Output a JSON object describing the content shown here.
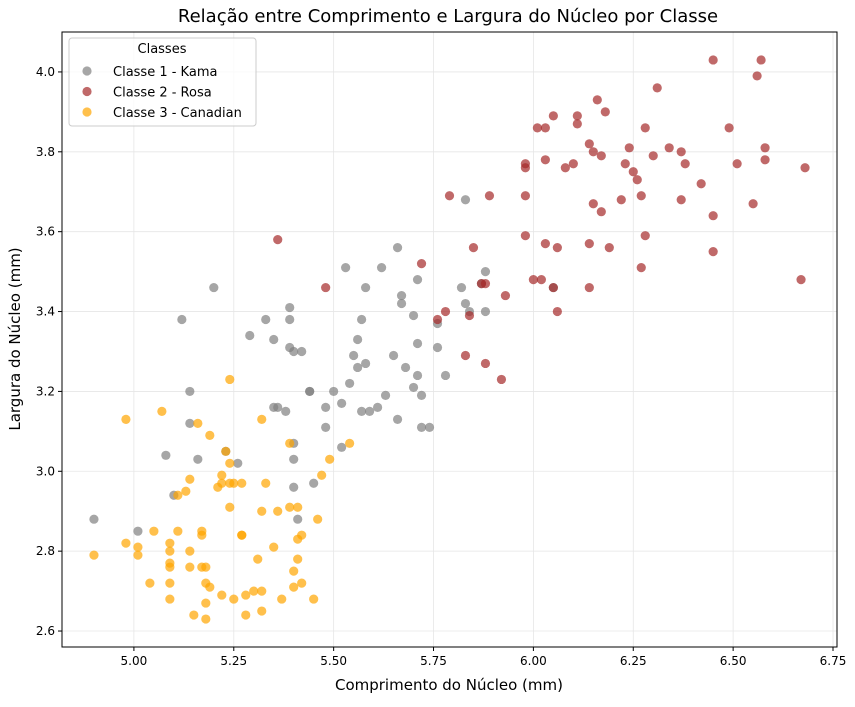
{
  "chart_data": {
    "type": "scatter",
    "title": "Relação entre Comprimento e Largura do Núcleo por Classe",
    "xlabel": "Comprimento do Núcleo (mm)",
    "ylabel": "Largura do Núcleo (mm)",
    "xlim": [
      4.82,
      6.76
    ],
    "ylim": [
      2.56,
      4.1
    ],
    "xticks": [
      "5.00",
      "5.25",
      "5.50",
      "5.75",
      "6.00",
      "6.25",
      "6.50",
      "6.75"
    ],
    "yticks": [
      "2.6",
      "2.8",
      "3.0",
      "3.2",
      "3.4",
      "3.6",
      "3.8",
      "4.0"
    ],
    "grid": true,
    "legend": {
      "title": "Classes",
      "placement": "top-left"
    },
    "series": [
      {
        "name": "Classe 1 - Kama",
        "color": "#808080",
        "points": [
          [
            4.9,
            2.88
          ],
          [
            5.01,
            2.85
          ],
          [
            5.08,
            3.04
          ],
          [
            5.1,
            2.94
          ],
          [
            5.12,
            3.38
          ],
          [
            5.14,
            3.2
          ],
          [
            5.14,
            3.12
          ],
          [
            5.16,
            3.03
          ],
          [
            5.2,
            3.46
          ],
          [
            5.23,
            3.05
          ],
          [
            5.26,
            3.02
          ],
          [
            5.29,
            3.34
          ],
          [
            5.33,
            3.38
          ],
          [
            5.35,
            3.33
          ],
          [
            5.35,
            3.16
          ],
          [
            5.36,
            3.16
          ],
          [
            5.38,
            3.15
          ],
          [
            5.39,
            3.41
          ],
          [
            5.39,
            3.38
          ],
          [
            5.39,
            3.31
          ],
          [
            5.4,
            3.3
          ],
          [
            5.4,
            3.07
          ],
          [
            5.4,
            3.03
          ],
          [
            5.4,
            2.96
          ],
          [
            5.41,
            2.88
          ],
          [
            5.42,
            3.3
          ],
          [
            5.44,
            3.2
          ],
          [
            5.44,
            3.2
          ],
          [
            5.45,
            2.97
          ],
          [
            5.48,
            3.16
          ],
          [
            5.48,
            3.11
          ],
          [
            5.5,
            3.2
          ],
          [
            5.52,
            3.17
          ],
          [
            5.52,
            3.06
          ],
          [
            5.53,
            3.51
          ],
          [
            5.54,
            3.22
          ],
          [
            5.55,
            3.29
          ],
          [
            5.56,
            3.33
          ],
          [
            5.56,
            3.26
          ],
          [
            5.57,
            3.38
          ],
          [
            5.57,
            3.15
          ],
          [
            5.58,
            3.46
          ],
          [
            5.58,
            3.27
          ],
          [
            5.59,
            3.15
          ],
          [
            5.61,
            3.16
          ],
          [
            5.62,
            3.51
          ],
          [
            5.63,
            3.19
          ],
          [
            5.65,
            3.29
          ],
          [
            5.66,
            3.56
          ],
          [
            5.66,
            3.13
          ],
          [
            5.67,
            3.42
          ],
          [
            5.67,
            3.44
          ],
          [
            5.68,
            3.26
          ],
          [
            5.7,
            3.39
          ],
          [
            5.7,
            3.21
          ],
          [
            5.71,
            3.48
          ],
          [
            5.71,
            3.32
          ],
          [
            5.71,
            3.24
          ],
          [
            5.72,
            3.19
          ],
          [
            5.72,
            3.11
          ],
          [
            5.74,
            3.11
          ],
          [
            5.76,
            3.37
          ],
          [
            5.76,
            3.31
          ],
          [
            5.78,
            3.24
          ],
          [
            5.82,
            3.46
          ],
          [
            5.83,
            3.68
          ],
          [
            5.83,
            3.42
          ],
          [
            5.84,
            3.4
          ],
          [
            5.87,
            3.47
          ],
          [
            5.88,
            3.5
          ],
          [
            5.88,
            3.4
          ],
          [
            6.05,
            3.46
          ]
        ]
      },
      {
        "name": "Classe 2 - Rosa",
        "color": "#A52A2A",
        "points": [
          [
            5.36,
            3.58
          ],
          [
            5.48,
            3.46
          ],
          [
            5.72,
            3.52
          ],
          [
            5.76,
            3.38
          ],
          [
            5.78,
            3.4
          ],
          [
            5.79,
            3.69
          ],
          [
            5.83,
            3.29
          ],
          [
            5.84,
            3.39
          ],
          [
            5.85,
            3.56
          ],
          [
            5.87,
            3.47
          ],
          [
            5.88,
            3.47
          ],
          [
            5.88,
            3.27
          ],
          [
            5.89,
            3.69
          ],
          [
            5.92,
            3.23
          ],
          [
            5.93,
            3.44
          ],
          [
            5.98,
            3.77
          ],
          [
            5.98,
            3.76
          ],
          [
            5.98,
            3.69
          ],
          [
            5.98,
            3.59
          ],
          [
            6.0,
            3.48
          ],
          [
            6.01,
            3.86
          ],
          [
            6.02,
            3.48
          ],
          [
            6.03,
            3.86
          ],
          [
            6.03,
            3.78
          ],
          [
            6.03,
            3.57
          ],
          [
            6.05,
            3.89
          ],
          [
            6.05,
            3.46
          ],
          [
            6.06,
            3.56
          ],
          [
            6.06,
            3.4
          ],
          [
            6.08,
            3.76
          ],
          [
            6.1,
            3.77
          ],
          [
            6.11,
            3.89
          ],
          [
            6.11,
            3.87
          ],
          [
            6.14,
            3.82
          ],
          [
            6.14,
            3.57
          ],
          [
            6.14,
            3.46
          ],
          [
            6.15,
            3.8
          ],
          [
            6.15,
            3.67
          ],
          [
            6.16,
            3.93
          ],
          [
            6.17,
            3.79
          ],
          [
            6.17,
            3.65
          ],
          [
            6.18,
            3.9
          ],
          [
            6.19,
            3.56
          ],
          [
            6.22,
            3.68
          ],
          [
            6.23,
            3.77
          ],
          [
            6.24,
            3.81
          ],
          [
            6.25,
            3.75
          ],
          [
            6.26,
            3.73
          ],
          [
            6.27,
            3.69
          ],
          [
            6.27,
            3.51
          ],
          [
            6.28,
            3.86
          ],
          [
            6.28,
            3.59
          ],
          [
            6.3,
            3.79
          ],
          [
            6.31,
            3.96
          ],
          [
            6.34,
            3.81
          ],
          [
            6.37,
            3.8
          ],
          [
            6.37,
            3.68
          ],
          [
            6.38,
            3.77
          ],
          [
            6.42,
            3.72
          ],
          [
            6.45,
            4.03
          ],
          [
            6.45,
            3.64
          ],
          [
            6.45,
            3.55
          ],
          [
            6.49,
            3.86
          ],
          [
            6.51,
            3.77
          ],
          [
            6.55,
            3.67
          ],
          [
            6.56,
            3.99
          ],
          [
            6.57,
            4.03
          ],
          [
            6.58,
            3.81
          ],
          [
            6.58,
            3.78
          ],
          [
            6.67,
            3.48
          ],
          [
            6.68,
            3.76
          ]
        ]
      },
      {
        "name": "Classe 3 - Canadian",
        "color": "#FFA500",
        "points": [
          [
            4.9,
            2.79
          ],
          [
            4.98,
            3.13
          ],
          [
            4.98,
            2.82
          ],
          [
            5.01,
            2.81
          ],
          [
            5.01,
            2.79
          ],
          [
            5.04,
            2.72
          ],
          [
            5.05,
            2.85
          ],
          [
            5.07,
            3.15
          ],
          [
            5.09,
            2.82
          ],
          [
            5.09,
            2.8
          ],
          [
            5.09,
            2.77
          ],
          [
            5.09,
            2.76
          ],
          [
            5.09,
            2.72
          ],
          [
            5.09,
            2.68
          ],
          [
            5.11,
            2.94
          ],
          [
            5.11,
            2.85
          ],
          [
            5.13,
            2.95
          ],
          [
            5.14,
            2.98
          ],
          [
            5.14,
            2.8
          ],
          [
            5.14,
            2.76
          ],
          [
            5.15,
            2.64
          ],
          [
            5.16,
            3.12
          ],
          [
            5.17,
            2.85
          ],
          [
            5.17,
            2.84
          ],
          [
            5.17,
            2.76
          ],
          [
            5.18,
            2.76
          ],
          [
            5.18,
            2.72
          ],
          [
            5.18,
            2.67
          ],
          [
            5.18,
            2.63
          ],
          [
            5.19,
            3.09
          ],
          [
            5.19,
            2.71
          ],
          [
            5.21,
            2.96
          ],
          [
            5.22,
            2.99
          ],
          [
            5.22,
            2.97
          ],
          [
            5.22,
            2.69
          ],
          [
            5.23,
            3.05
          ],
          [
            5.24,
            3.23
          ],
          [
            5.24,
            3.02
          ],
          [
            5.24,
            2.97
          ],
          [
            5.24,
            2.91
          ],
          [
            5.25,
            2.97
          ],
          [
            5.25,
            2.68
          ],
          [
            5.27,
            2.97
          ],
          [
            5.27,
            2.84
          ],
          [
            5.27,
            2.84
          ],
          [
            5.28,
            2.69
          ],
          [
            5.28,
            2.64
          ],
          [
            5.3,
            2.7
          ],
          [
            5.31,
            2.78
          ],
          [
            5.32,
            3.13
          ],
          [
            5.32,
            2.9
          ],
          [
            5.32,
            2.7
          ],
          [
            5.32,
            2.65
          ],
          [
            5.33,
            2.97
          ],
          [
            5.35,
            2.81
          ],
          [
            5.36,
            2.9
          ],
          [
            5.37,
            2.68
          ],
          [
            5.39,
            3.07
          ],
          [
            5.39,
            2.91
          ],
          [
            5.4,
            2.75
          ],
          [
            5.4,
            2.71
          ],
          [
            5.41,
            2.91
          ],
          [
            5.41,
            2.83
          ],
          [
            5.41,
            2.78
          ],
          [
            5.42,
            2.84
          ],
          [
            5.42,
            2.72
          ],
          [
            5.45,
            2.68
          ],
          [
            5.46,
            2.88
          ],
          [
            5.47,
            2.99
          ],
          [
            5.49,
            3.03
          ],
          [
            5.54,
            3.07
          ]
        ]
      }
    ]
  }
}
